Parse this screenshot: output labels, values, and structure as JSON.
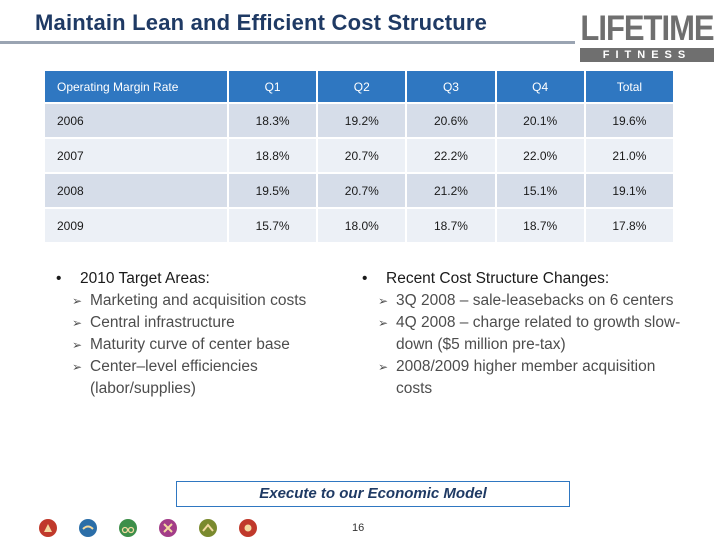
{
  "header": {
    "title": "Maintain Lean and Efficient Cost Structure",
    "logo_top": "LIFETIME",
    "logo_bottom": "FITNESS"
  },
  "table": {
    "columns": [
      "Operating Margin Rate",
      "Q1",
      "Q2",
      "Q3",
      "Q4",
      "Total"
    ],
    "rows": [
      [
        "2006",
        "18.3%",
        "19.2%",
        "20.6%",
        "20.1%",
        "19.6%"
      ],
      [
        "2007",
        "18.8%",
        "20.7%",
        "22.2%",
        "22.0%",
        "21.0%"
      ],
      [
        "2008",
        "19.5%",
        "20.7%",
        "21.2%",
        "15.1%",
        "19.1%"
      ],
      [
        "2009",
        "15.7%",
        "18.0%",
        "18.7%",
        "18.7%",
        "17.8%"
      ]
    ]
  },
  "left_section": {
    "heading": "2010 Target Areas:",
    "items": [
      "Marketing and acquisition costs",
      "Central infrastructure",
      "Maturity curve of center base",
      "Center–level efficiencies (labor/supplies)"
    ]
  },
  "right_section": {
    "heading": "Recent Cost Structure Changes:",
    "items": [
      "3Q 2008 – sale-leasebacks on 6 centers",
      "4Q 2008 – charge related to growth slow-down ($5 million pre-tax)",
      "2008/2009 higher member acquisition costs"
    ]
  },
  "callout": "Execute to our Economic Model",
  "page_number": "16",
  "colors": {
    "title": "#1f3a64",
    "table_header": "#2f77c1",
    "row_dark": "#d6dde9",
    "row_light": "#ecf0f6"
  },
  "footer_icons": [
    {
      "name": "runner-icon",
      "color": "#c0392b"
    },
    {
      "name": "swimmer-icon",
      "color": "#2b6ea8"
    },
    {
      "name": "cyclist-icon",
      "color": "#3d8f4a"
    },
    {
      "name": "climber-icon",
      "color": "#a33d88"
    },
    {
      "name": "yoga-icon",
      "color": "#7a8a2e"
    },
    {
      "name": "tennis-icon",
      "color": "#c0392b"
    }
  ]
}
